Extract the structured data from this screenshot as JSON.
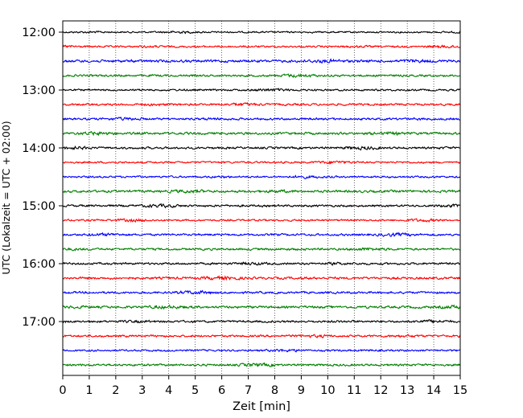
{
  "chart_data": {
    "type": "line",
    "title": "",
    "xlabel": "Zeit  [min]",
    "ylabel": "UTC (Lokalzeit = UTC + 02:00)",
    "xlim": [
      0,
      15
    ],
    "x_ticks": [
      "0",
      "1",
      "2",
      "3",
      "4",
      "5",
      "6",
      "7",
      "8",
      "9",
      "10",
      "11",
      "12",
      "13",
      "14",
      "15"
    ],
    "y_ticks": [
      "12:00",
      "13:00",
      "14:00",
      "15:00",
      "16:00",
      "17:00"
    ],
    "grid": "vertical dotted",
    "legend": "none",
    "trace_colors": [
      "#000000",
      "#ff0000",
      "#0000ff",
      "#008000"
    ],
    "series": [
      {
        "start": "12:00",
        "amplitude": 0.35
      },
      {
        "start": "12:15",
        "amplitude": 0.4
      },
      {
        "start": "12:30",
        "amplitude": 0.55
      },
      {
        "start": "12:45",
        "amplitude": 0.45
      },
      {
        "start": "13:00",
        "amplitude": 0.4
      },
      {
        "start": "13:15",
        "amplitude": 0.45
      },
      {
        "start": "13:30",
        "amplitude": 0.45
      },
      {
        "start": "13:45",
        "amplitude": 0.5
      },
      {
        "start": "14:00",
        "amplitude": 0.45
      },
      {
        "start": "14:15",
        "amplitude": 0.4
      },
      {
        "start": "14:30",
        "amplitude": 0.4
      },
      {
        "start": "14:45",
        "amplitude": 0.5
      },
      {
        "start": "15:00",
        "amplitude": 0.45
      },
      {
        "start": "15:15",
        "amplitude": 0.4
      },
      {
        "start": "15:30",
        "amplitude": 0.45
      },
      {
        "start": "15:45",
        "amplitude": 0.45
      },
      {
        "start": "16:00",
        "amplitude": 0.45
      },
      {
        "start": "16:15",
        "amplitude": 0.5
      },
      {
        "start": "16:30",
        "amplitude": 0.45
      },
      {
        "start": "16:45",
        "amplitude": 0.5
      },
      {
        "start": "17:00",
        "amplitude": 0.45
      },
      {
        "start": "17:15",
        "amplitude": 0.45
      },
      {
        "start": "17:30",
        "amplitude": 0.4
      },
      {
        "start": "17:45",
        "amplitude": 0.45
      }
    ]
  }
}
